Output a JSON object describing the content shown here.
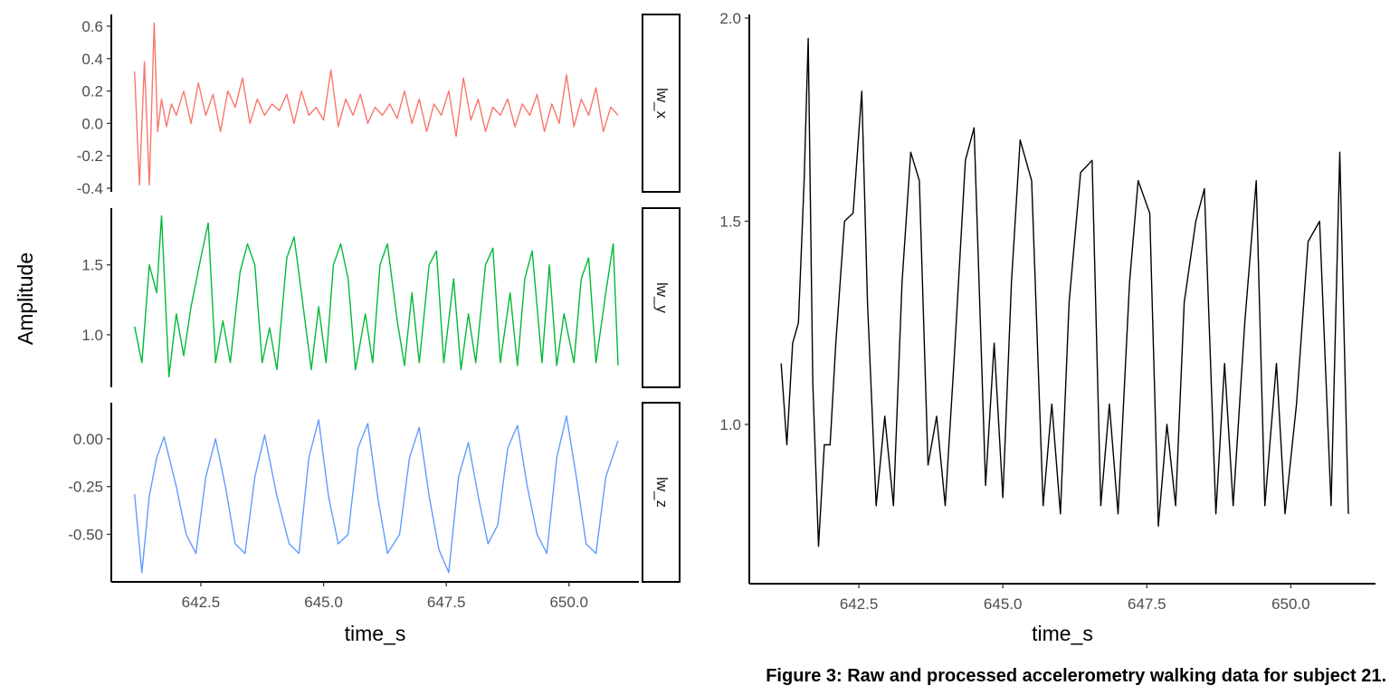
{
  "caption": "Figure 3: Raw and processed accelerometry walking data for subject 21.",
  "chart_data": [
    {
      "type": "line",
      "title": "",
      "facets": "rows",
      "xlabel": "time_s",
      "ylabel": "Amplitude",
      "xlim": [
        641.1,
        651.0
      ],
      "x_ticks": [
        642.5,
        645.0,
        647.5,
        650.0
      ],
      "x_tick_labels": [
        "642.5",
        "645.0",
        "647.5",
        "650.0"
      ],
      "grid": false,
      "legend": "none",
      "panels": [
        {
          "strip": "lw_x",
          "color": "#F8766D",
          "ylim": [
            -0.4,
            0.65
          ],
          "y_ticks": [
            -0.4,
            -0.2,
            0.0,
            0.2,
            0.4,
            0.6
          ],
          "y_tick_labels": [
            "-0.4",
            "-0.2",
            "0.0",
            "0.2",
            "0.4",
            "0.6"
          ],
          "x": [
            641.15,
            641.25,
            641.35,
            641.45,
            641.55,
            641.62,
            641.7,
            641.8,
            641.9,
            642.0,
            642.15,
            642.3,
            642.45,
            642.6,
            642.75,
            642.9,
            643.05,
            643.2,
            643.35,
            643.5,
            643.65,
            643.8,
            643.95,
            644.1,
            644.25,
            644.4,
            644.55,
            644.7,
            644.85,
            645.0,
            645.15,
            645.3,
            645.45,
            645.6,
            645.75,
            645.9,
            646.05,
            646.2,
            646.35,
            646.5,
            646.65,
            646.8,
            646.95,
            647.1,
            647.25,
            647.4,
            647.55,
            647.7,
            647.85,
            648.0,
            648.15,
            648.3,
            648.45,
            648.6,
            648.75,
            648.9,
            649.05,
            649.2,
            649.35,
            649.5,
            649.65,
            649.8,
            649.95,
            650.1,
            650.25,
            650.4,
            650.55,
            650.7,
            650.85,
            651.0
          ],
          "values": [
            0.32,
            -0.38,
            0.38,
            -0.38,
            0.62,
            -0.05,
            0.15,
            -0.02,
            0.12,
            0.05,
            0.2,
            0.0,
            0.25,
            0.05,
            0.18,
            -0.05,
            0.2,
            0.1,
            0.28,
            0.0,
            0.15,
            0.05,
            0.12,
            0.08,
            0.18,
            0.0,
            0.2,
            0.05,
            0.1,
            0.02,
            0.33,
            -0.02,
            0.15,
            0.05,
            0.18,
            0.0,
            0.1,
            0.05,
            0.12,
            0.03,
            0.2,
            0.0,
            0.15,
            -0.05,
            0.12,
            0.05,
            0.2,
            -0.08,
            0.28,
            0.02,
            0.15,
            -0.05,
            0.1,
            0.05,
            0.15,
            -0.02,
            0.12,
            0.05,
            0.18,
            -0.05,
            0.12,
            0.0,
            0.3,
            -0.02,
            0.15,
            0.05,
            0.22,
            -0.05,
            0.1,
            0.05
          ]
        },
        {
          "strip": "lw_y",
          "color": "#00BA38",
          "ylim": [
            0.65,
            1.88
          ],
          "y_ticks": [
            1.0,
            1.5
          ],
          "y_tick_labels": [
            "1.0",
            "1.5"
          ],
          "x": [
            641.15,
            641.3,
            641.45,
            641.6,
            641.7,
            641.85,
            642.0,
            642.15,
            642.3,
            642.5,
            642.65,
            642.8,
            642.95,
            643.1,
            643.3,
            643.45,
            643.6,
            643.75,
            643.9,
            644.05,
            644.25,
            644.4,
            644.55,
            644.75,
            644.9,
            645.05,
            645.2,
            645.35,
            645.5,
            645.65,
            645.85,
            646.0,
            646.15,
            646.3,
            646.5,
            646.65,
            646.8,
            646.95,
            647.15,
            647.3,
            647.45,
            647.65,
            647.8,
            647.95,
            648.1,
            648.3,
            648.45,
            648.6,
            648.8,
            648.95,
            649.1,
            649.25,
            649.45,
            649.6,
            649.75,
            649.9,
            650.1,
            650.25,
            650.4,
            650.55,
            650.75,
            650.9,
            651.0
          ],
          "values": [
            1.06,
            0.8,
            1.5,
            1.3,
            1.85,
            0.7,
            1.15,
            0.85,
            1.2,
            1.55,
            1.8,
            0.8,
            1.1,
            0.8,
            1.45,
            1.65,
            1.5,
            0.8,
            1.05,
            0.75,
            1.55,
            1.7,
            1.3,
            0.75,
            1.2,
            0.8,
            1.5,
            1.65,
            1.4,
            0.75,
            1.15,
            0.8,
            1.5,
            1.65,
            1.1,
            0.78,
            1.3,
            0.8,
            1.5,
            1.6,
            0.8,
            1.4,
            0.75,
            1.15,
            0.8,
            1.5,
            1.62,
            0.8,
            1.3,
            0.78,
            1.4,
            1.6,
            0.8,
            1.5,
            0.78,
            1.15,
            0.8,
            1.4,
            1.55,
            0.8,
            1.3,
            1.65,
            0.78
          ]
        },
        {
          "strip": "lw_z",
          "color": "#619CFF",
          "ylim": [
            -0.73,
            0.17
          ],
          "y_ticks": [
            -0.5,
            -0.25,
            0.0
          ],
          "y_tick_labels": [
            "-0.50",
            "-0.25",
            "0.00"
          ],
          "x": [
            641.15,
            641.3,
            641.45,
            641.6,
            641.75,
            642.0,
            642.2,
            642.4,
            642.6,
            642.8,
            643.0,
            643.2,
            643.4,
            643.6,
            643.8,
            644.05,
            644.3,
            644.5,
            644.7,
            644.9,
            645.1,
            645.3,
            645.5,
            645.7,
            645.9,
            646.1,
            646.3,
            646.55,
            646.75,
            646.95,
            647.15,
            647.35,
            647.55,
            647.75,
            647.95,
            648.15,
            648.35,
            648.55,
            648.75,
            648.95,
            649.15,
            649.35,
            649.55,
            649.75,
            649.95,
            650.15,
            650.35,
            650.55,
            650.75,
            651.0
          ],
          "values": [
            -0.29,
            -0.7,
            -0.3,
            -0.1,
            0.01,
            -0.25,
            -0.5,
            -0.6,
            -0.2,
            0.0,
            -0.25,
            -0.55,
            -0.6,
            -0.2,
            0.02,
            -0.3,
            -0.55,
            -0.6,
            -0.1,
            0.1,
            -0.3,
            -0.55,
            -0.5,
            -0.05,
            0.08,
            -0.3,
            -0.6,
            -0.5,
            -0.1,
            0.06,
            -0.3,
            -0.58,
            -0.7,
            -0.2,
            -0.02,
            -0.3,
            -0.55,
            -0.45,
            -0.05,
            0.07,
            -0.25,
            -0.5,
            -0.6,
            -0.1,
            0.12,
            -0.2,
            -0.55,
            -0.6,
            -0.2,
            -0.01
          ]
        }
      ]
    },
    {
      "type": "line",
      "title": "",
      "xlabel": "time_s",
      "ylabel": "",
      "xlim": [
        641.1,
        651.0
      ],
      "ylim": [
        0.65,
        2.0
      ],
      "x_ticks": [
        642.5,
        645.0,
        647.5,
        650.0
      ],
      "x_tick_labels": [
        "642.5",
        "645.0",
        "647.5",
        "650.0"
      ],
      "y_ticks": [
        1.0,
        1.5,
        2.0
      ],
      "y_tick_labels": [
        "1.0",
        "1.5",
        "2.0"
      ],
      "grid": false,
      "legend": "none",
      "color": "#000000",
      "x": [
        641.15,
        641.25,
        641.35,
        641.45,
        641.55,
        641.62,
        641.7,
        641.8,
        641.9,
        642.0,
        642.1,
        642.25,
        642.4,
        642.55,
        642.65,
        642.8,
        642.95,
        643.1,
        643.25,
        643.4,
        643.55,
        643.7,
        643.85,
        644.0,
        644.15,
        644.35,
        644.5,
        644.7,
        644.85,
        645.0,
        645.15,
        645.3,
        645.5,
        645.7,
        645.85,
        646.0,
        646.15,
        646.35,
        646.55,
        646.7,
        646.85,
        647.0,
        647.2,
        647.35,
        647.55,
        647.7,
        647.85,
        648.0,
        648.15,
        648.35,
        648.5,
        648.7,
        648.85,
        649.0,
        649.2,
        649.4,
        649.55,
        649.75,
        649.9,
        650.1,
        650.3,
        650.5,
        650.7,
        650.85,
        651.0
      ],
      "values": [
        1.15,
        0.95,
        1.2,
        1.25,
        1.6,
        1.95,
        1.1,
        0.7,
        0.95,
        0.95,
        1.2,
        1.5,
        1.52,
        1.82,
        1.3,
        0.8,
        1.02,
        0.8,
        1.35,
        1.67,
        1.6,
        0.9,
        1.02,
        0.8,
        1.15,
        1.65,
        1.73,
        0.85,
        1.2,
        0.82,
        1.35,
        1.7,
        1.6,
        0.8,
        1.05,
        0.78,
        1.3,
        1.62,
        1.65,
        0.8,
        1.05,
        0.78,
        1.35,
        1.6,
        1.52,
        0.75,
        1.0,
        0.8,
        1.3,
        1.5,
        1.58,
        0.78,
        1.15,
        0.8,
        1.25,
        1.6,
        0.8,
        1.15,
        0.78,
        1.05,
        1.45,
        1.5,
        0.8,
        1.67,
        0.78
      ]
    }
  ]
}
